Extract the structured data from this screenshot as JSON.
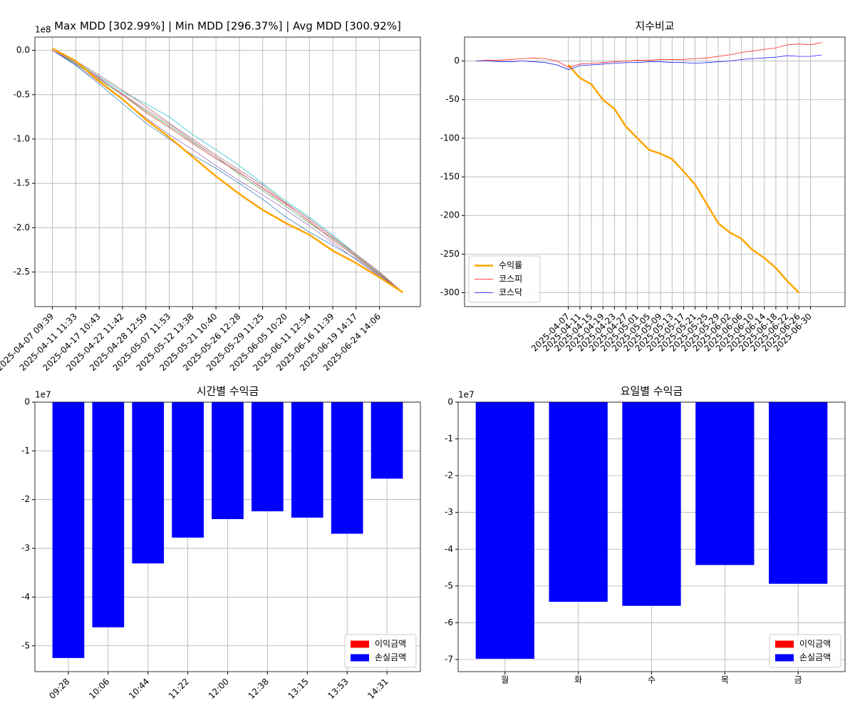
{
  "chart_data": [
    {
      "type": "line",
      "title": "Max MDD [302.99%] | Min MDD [296.37%] | Avg MDD [300.92%]",
      "y_offset_label": "1e8",
      "grid": true,
      "xtick_rotation": 45,
      "categories": [
        "2025-04-07 09:39",
        "2025-04-11 11:33",
        "2025-04-17 10:43",
        "2025-04-22 11:42",
        "2025-04-28 12:59",
        "2025-05-07 11:53",
        "2025-05-12 13:38",
        "2025-05-21 10:40",
        "2025-05-26 12:28",
        "2025-05-29 11:25",
        "2025-06-05 10:20",
        "2025-06-11 12:54",
        "2025-06-16 11:39",
        "2025-06-19 14:17",
        "2025-06-24 14:06",
        null
      ],
      "ylim": [
        -2.89,
        0.15
      ],
      "yticks": [
        {
          "value": 0,
          "label": "0.0"
        },
        -0.5,
        {
          "value": -1,
          "label": "-1.0"
        },
        -1.5,
        {
          "value": -2,
          "label": "-2.0"
        },
        -2.5
      ],
      "series": [
        {
          "color": "#17becf",
          "width": 0.7,
          "values": [
            0,
            -0.13,
            -0.3,
            -0.47,
            -0.6,
            -0.75,
            -0.95,
            -1.12,
            -1.3,
            -1.5,
            -1.7,
            -1.88,
            -2.08,
            -2.3,
            -2.5,
            -2.73
          ]
        },
        {
          "color": "#2ca02c",
          "width": 0.7,
          "values": [
            0,
            -0.15,
            -0.33,
            -0.5,
            -0.68,
            -0.85,
            -1.03,
            -1.2,
            -1.4,
            -1.58,
            -1.76,
            -1.95,
            -2.12,
            -2.32,
            -2.52,
            -2.73
          ]
        },
        {
          "color": "#d62728",
          "width": 0.7,
          "values": [
            0,
            -0.14,
            -0.31,
            -0.5,
            -0.7,
            -0.87,
            -1.05,
            -1.22,
            -1.38,
            -1.55,
            -1.73,
            -1.93,
            -2.14,
            -2.33,
            -2.53,
            -2.73
          ]
        },
        {
          "color": "#9467bd",
          "width": 0.7,
          "values": [
            0,
            -0.16,
            -0.36,
            -0.56,
            -0.76,
            -0.95,
            -1.12,
            -1.3,
            -1.47,
            -1.63,
            -1.8,
            -1.98,
            -2.17,
            -2.36,
            -2.55,
            -2.73
          ]
        },
        {
          "color": "#1f77b4",
          "width": 0.7,
          "values": [
            0,
            -0.17,
            -0.38,
            -0.6,
            -0.82,
            -1.0,
            -1.18,
            -1.33,
            -1.5,
            -1.68,
            -1.88,
            -2.05,
            -2.2,
            -2.35,
            -2.54,
            -2.73
          ]
        },
        {
          "color": "#8c564b",
          "width": 0.7,
          "values": [
            0,
            -0.12,
            -0.28,
            -0.45,
            -0.63,
            -0.82,
            -1.0,
            -1.18,
            -1.35,
            -1.52,
            -1.72,
            -1.9,
            -2.1,
            -2.3,
            -2.5,
            -2.73
          ]
        },
        {
          "color": "#e377c2",
          "width": 0.7,
          "values": [
            0,
            -0.14,
            -0.32,
            -0.49,
            -0.66,
            -0.83,
            -1.02,
            -1.2,
            -1.37,
            -1.56,
            -1.74,
            -1.92,
            -2.11,
            -2.31,
            -2.51,
            -2.73
          ]
        },
        {
          "color": "#ffa500",
          "width": 2.5,
          "values": [
            0.02,
            -0.12,
            -0.35,
            -0.55,
            -0.78,
            -0.98,
            -1.2,
            -1.42,
            -1.62,
            -1.8,
            -1.95,
            -2.08,
            -2.26,
            -2.4,
            -2.56,
            -2.73
          ]
        }
      ]
    },
    {
      "type": "line",
      "title": "지수비교",
      "grid": true,
      "xtick_rotation": 45,
      "legend": "lower left",
      "x": [
        "2025-03-06",
        "2025-03-10",
        "2025-03-14",
        "2025-03-18",
        "2025-03-22",
        "2025-03-26",
        "2025-03-30",
        "2025-04-03",
        "2025-04-07",
        "2025-04-11",
        "2025-04-15",
        "2025-04-19",
        "2025-04-23",
        "2025-04-27",
        "2025-05-01",
        "2025-05-05",
        "2025-05-09",
        "2025-05-13",
        "2025-05-17",
        "2025-05-21",
        "2025-05-25",
        "2025-05-29",
        "2025-06-02",
        "2025-06-06",
        "2025-06-10",
        "2025-06-14",
        "2025-06-18",
        "2025-06-22",
        "2025-06-26",
        "2025-06-30",
        "2025-07-04"
      ],
      "xlim": [
        "2025-03-02",
        "2025-07-12"
      ],
      "xticks": [
        "2025-04-07",
        "2025-04-11",
        "2025-04-15",
        "2025-04-19",
        "2025-04-23",
        "2025-04-27",
        "2025-05-01",
        "2025-05-05",
        "2025-05-09",
        "2025-05-13",
        "2025-05-17",
        "2025-05-21",
        "2025-05-25",
        "2025-05-29",
        "2025-06-02",
        "2025-06-06",
        "2025-06-10",
        "2025-06-14",
        "2025-06-18",
        "2025-06-22",
        "2025-06-26",
        "2025-06-30"
      ],
      "ylim": [
        -318,
        31
      ],
      "yticks": [
        0,
        -50,
        -100,
        -150,
        -200,
        -250,
        -300
      ],
      "series": [
        {
          "name": "수익률",
          "color": "#ffa500",
          "width": 2.5,
          "values": [
            null,
            null,
            null,
            null,
            null,
            null,
            null,
            null,
            -5,
            -22,
            -30,
            -50,
            -62,
            -85,
            -100,
            -115,
            -120,
            -127,
            -143,
            -160,
            -185,
            -210,
            -222,
            -230,
            -245,
            -255,
            -268,
            -285,
            -300,
            null,
            null
          ]
        },
        {
          "name": "코스피",
          "color": "#ff0000",
          "width": 0.7,
          "values": [
            0,
            1,
            1,
            2,
            3,
            4,
            3,
            0,
            -8,
            -4,
            -3,
            -2,
            -1,
            0,
            1,
            1,
            2,
            2,
            2,
            3,
            4,
            6,
            8,
            11,
            13,
            15,
            17,
            21,
            22,
            21,
            24
          ]
        },
        {
          "name": "코스닥",
          "color": "#0000ff",
          "width": 0.7,
          "values": [
            0,
            0,
            -1,
            -1,
            0,
            -1,
            -2,
            -5,
            -11,
            -6,
            -5,
            -4,
            -3,
            -2,
            -2,
            -1,
            -1,
            -2,
            -2,
            -3,
            -2,
            -1,
            0,
            2,
            3,
            4,
            5,
            7,
            6,
            6,
            8
          ]
        }
      ]
    },
    {
      "type": "bar",
      "title": "시간별 수익금",
      "y_offset_label": "1e7",
      "grid": true,
      "xtick_rotation": 45,
      "legend": "lower right",
      "categories": [
        "09:28",
        "10:06",
        "10:44",
        "11:22",
        "12:00",
        "12:38",
        "13:15",
        "13:53",
        "14:31"
      ],
      "ylim": [
        -5.53,
        0
      ],
      "yticks": [
        0,
        -1,
        -2,
        -3,
        -4,
        -5
      ],
      "series": [
        {
          "name": "이익금액",
          "color": "#ff0000",
          "values": [
            0,
            0,
            0,
            0,
            0,
            0,
            0,
            0,
            0
          ]
        },
        {
          "name": "손실금액",
          "color": "#0000ff",
          "values": [
            -5.25,
            -4.62,
            -3.31,
            -2.78,
            -2.4,
            -2.24,
            -2.37,
            -2.7,
            -1.57
          ]
        }
      ]
    },
    {
      "type": "bar",
      "title": "요일별 수익금",
      "y_offset_label": "1e7",
      "grid": true,
      "legend": "lower right",
      "categories": [
        "월",
        "화",
        "수",
        "목",
        "금"
      ],
      "ylim": [
        -7.33,
        0
      ],
      "yticks": [
        0,
        -1,
        -2,
        -3,
        -4,
        -5,
        -6,
        -7
      ],
      "series": [
        {
          "name": "이익금액",
          "color": "#ff0000",
          "values": [
            0,
            0,
            0,
            0,
            0
          ]
        },
        {
          "name": "손실금액",
          "color": "#0000ff",
          "values": [
            -6.98,
            -5.43,
            -5.54,
            -4.43,
            -4.94
          ]
        }
      ]
    }
  ]
}
